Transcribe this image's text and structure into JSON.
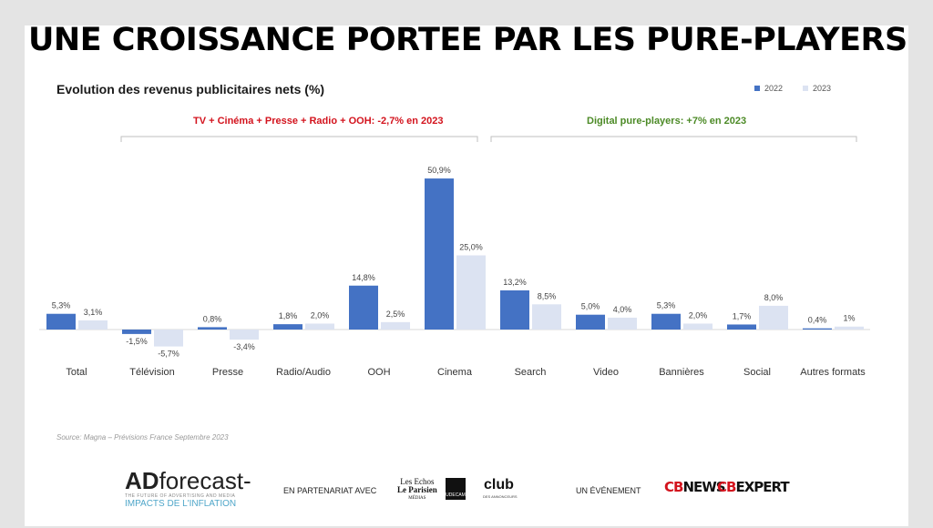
{
  "title": "UNE CROISSANCE PORTEE PAR LES PURE-PLAYERS",
  "chart_data": {
    "type": "bar",
    "title": "Evolution des revenus publicitaires nets (%)",
    "categories": [
      "Total",
      "Télévision",
      "Presse",
      "Radio/Audio",
      "OOH",
      "Cinema",
      "Search",
      "Video",
      "Bannières",
      "Social",
      "Autres formats"
    ],
    "series": [
      {
        "name": "2022",
        "color": "#4472c4",
        "values": [
          5.3,
          -1.5,
          0.8,
          1.8,
          14.8,
          50.9,
          13.2,
          5.0,
          5.3,
          1.7,
          0.4
        ],
        "labels": [
          "5,3%",
          "-1,5%",
          "0,8%",
          "1,8%",
          "14,8%",
          "50,9%",
          "13,2%",
          "5,0%",
          "5,3%",
          "1,7%",
          "0,4%"
        ]
      },
      {
        "name": "2023",
        "color": "#dce3f2",
        "values": [
          3.1,
          -5.7,
          -3.4,
          2.0,
          2.5,
          25.0,
          8.5,
          4.0,
          2.0,
          8.0,
          1.0
        ],
        "labels": [
          "3,1%",
          "-5,7%",
          "-3,4%",
          "2,0%",
          "2,5%",
          "25,0%",
          "8,5%",
          "4,0%",
          "2,0%",
          "8,0%",
          "1%"
        ]
      }
    ],
    "groups": [
      {
        "label": "TV + Cinéma + Presse + Radio + OOH:  -2,7% en 2023",
        "color": "#d3131d"
      },
      {
        "label": "Digital pure-players:  +7% en 2023",
        "color": "#4c8a26"
      }
    ],
    "legend_position": "top-right",
    "grid": false
  },
  "source": "Source:  Magna – Prévisions France Septembre 2023",
  "footer": {
    "logo_main": "AD",
    "logo_word": "forecast-",
    "logo_tagline": "THE FUTURE OF ADVERTISING AND MEDIA",
    "logo_subtitle": "IMPACTS DE L'INFLATION",
    "partner_text": "EN PARTENARIAT AVEC",
    "partner_echos": "Les Echos",
    "partner_parisien": "Le Parisien",
    "partner_medias": "MÉDIAS",
    "partner_udecam": "UDECAM",
    "partner_club": "club",
    "partner_club_sub": "DES ANNONCEURS",
    "event_text": "UN ÉVÉNEMENT",
    "cb_news_prefix": "CB",
    "cb_news": "NEWS",
    "cb_expert_prefix": "CB",
    "cb_expert": "EXPERT"
  }
}
